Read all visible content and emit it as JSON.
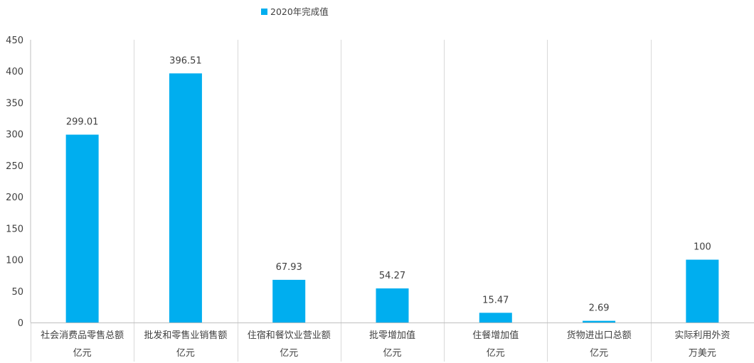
{
  "chart_data": {
    "type": "bar",
    "categories": [
      "社会消费品零售总额",
      "批发和零售业销售额",
      "住宿和餐饮业营业额",
      "批零增加值",
      "住餐增加值",
      "货物进出口总额",
      "实际利用外资"
    ],
    "units": [
      "亿元",
      "亿元",
      "亿元",
      "亿元",
      "亿元",
      "亿元",
      "万美元"
    ],
    "series": [
      {
        "name": "2020年完成值",
        "values": [
          299.01,
          396.51,
          67.93,
          54.27,
          15.47,
          2.69,
          100
        ],
        "labels": [
          "299.01",
          "396.51",
          "67.93",
          "54.27",
          "15.47",
          "2.69",
          "100"
        ],
        "color": "#00AEEF"
      }
    ],
    "ylim": [
      0,
      450
    ],
    "yticks": [
      0,
      50,
      100,
      150,
      200,
      250,
      300,
      350,
      400,
      450
    ],
    "grid": "vertical category separators",
    "legend_position": "top-center"
  },
  "colors": {
    "bar": "#00AEEF",
    "axis": "#bfbfbf",
    "grid": "#d9d9d9",
    "text": "#404040"
  }
}
